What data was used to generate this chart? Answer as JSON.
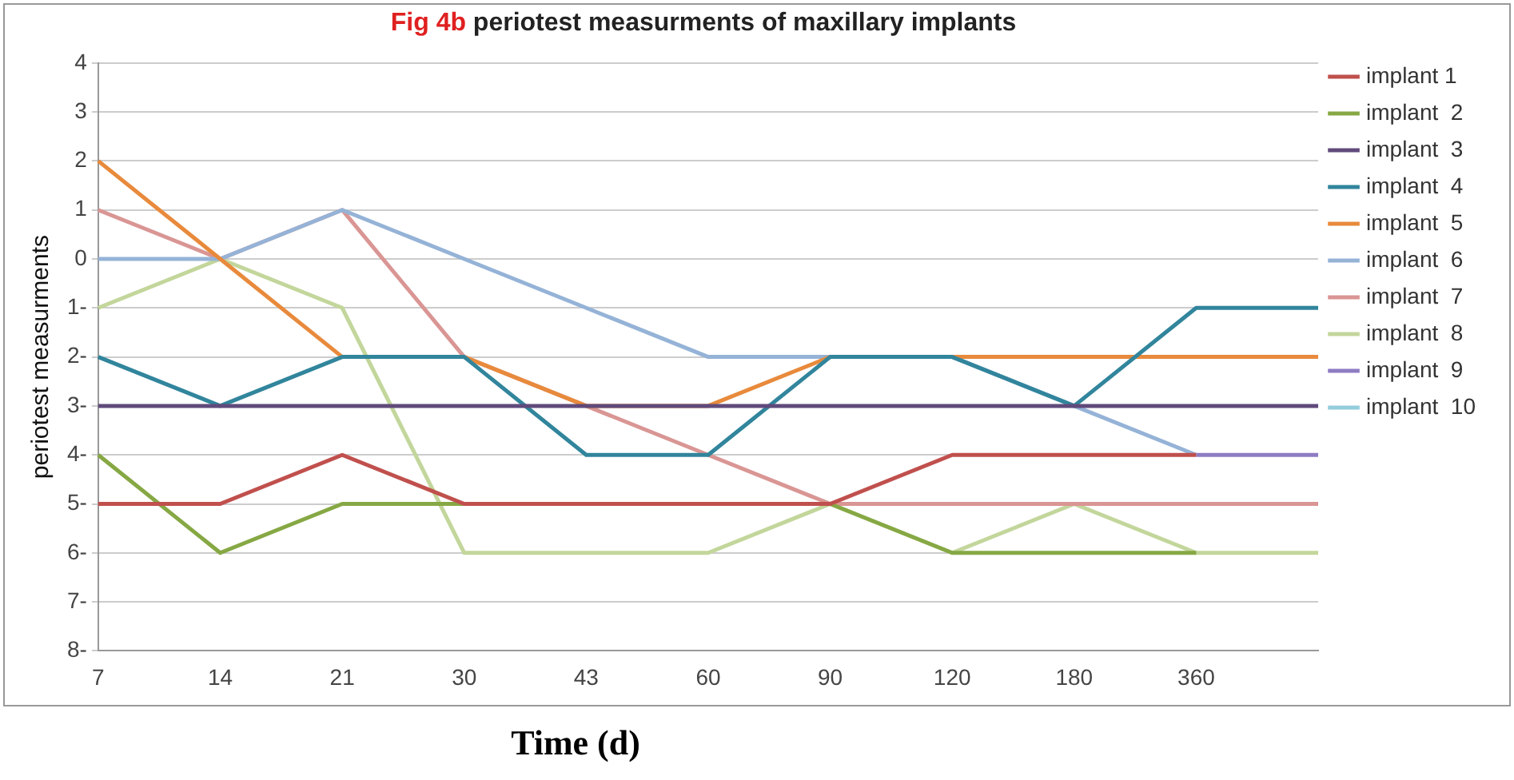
{
  "chart_data": {
    "type": "line",
    "title": "Fig 4b periotest measurments of maxillary implants",
    "xlabel": "Time (d)",
    "ylabel": "periotest measurments",
    "categories": [
      "7",
      "14",
      "21",
      "30",
      "43",
      "60",
      "90",
      "120",
      "180",
      "360",
      null
    ],
    "series": [
      {
        "name": "implant 1",
        "color": "#c0504d",
        "values": [
          -5,
          -5,
          -4,
          -5,
          -5,
          -5,
          -5,
          -4,
          -4,
          -4,
          null
        ]
      },
      {
        "name": "implant  2",
        "color": "#86a844",
        "values": [
          -4,
          -6,
          -5,
          -5,
          -5,
          -5,
          -5,
          -6,
          -6,
          -6,
          null
        ]
      },
      {
        "name": "implant  3",
        "color": "#604a7b",
        "values": [
          -3,
          -3,
          -3,
          -3,
          -3,
          -3,
          -3,
          -3,
          -3,
          -3,
          -3
        ]
      },
      {
        "name": "implant  4",
        "color": "#31859c",
        "values": [
          -2,
          -3,
          -2,
          -2,
          -4,
          -4,
          -2,
          -2,
          -3,
          -1,
          -1
        ]
      },
      {
        "name": "implant  5",
        "color": "#e88a3c",
        "values": [
          2,
          0,
          -2,
          -2,
          -3,
          -3,
          -2,
          -2,
          -2,
          -2,
          -2
        ]
      },
      {
        "name": "implant  6",
        "color": "#95b3d7",
        "values": [
          0,
          0,
          1,
          0,
          -1,
          -2,
          -2,
          -2,
          -3,
          -4,
          null
        ]
      },
      {
        "name": "implant  7",
        "color": "#d99694",
        "values": [
          1,
          0,
          1,
          -2,
          -3,
          -4,
          -5,
          -5,
          -5,
          -5,
          -5
        ]
      },
      {
        "name": "implant  8",
        "color": "#c3d69b",
        "values": [
          -1,
          0,
          -1,
          -6,
          -6,
          -6,
          -5,
          -6,
          -5,
          -6,
          -6
        ]
      },
      {
        "name": "implant  9",
        "color": "#8e7cc3",
        "values": [
          null,
          null,
          null,
          null,
          null,
          null,
          null,
          null,
          null,
          -4,
          -4
        ]
      },
      {
        "name": "implant  10",
        "color": "#93cddd",
        "values": [
          null,
          null,
          null,
          null,
          null,
          null,
          null,
          null,
          null,
          null,
          null
        ]
      }
    ],
    "ylim": [
      -8,
      4
    ],
    "yticks": [
      {
        "value": -8,
        "label": "8-"
      },
      {
        "value": -7,
        "label": "7-"
      },
      {
        "value": -6,
        "label": "6-"
      },
      {
        "value": -5,
        "label": "5-"
      },
      {
        "value": -4,
        "label": "4-"
      },
      {
        "value": -3,
        "label": "3-"
      },
      {
        "value": -2,
        "label": "2-"
      },
      {
        "value": -1,
        "label": "1-"
      },
      0,
      1,
      2,
      3,
      4
    ],
    "grid": "y",
    "legend": "right",
    "marker": "none",
    "line_style": "solid"
  }
}
